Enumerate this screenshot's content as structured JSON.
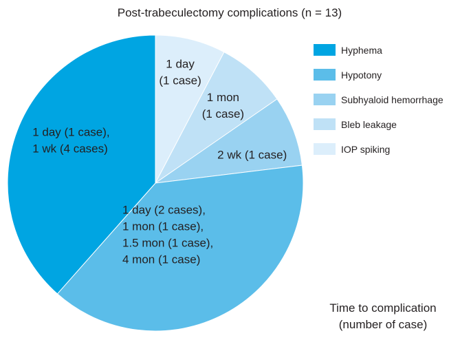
{
  "chart_data": {
    "type": "pie",
    "title": "Post-trabeculectomy complications (n = 13)",
    "start_angle": "12 o'clock, clockwise",
    "slices": [
      {
        "name": "IOP spiking",
        "value": 1,
        "color": "#dceefb",
        "label_lines": [
          "1 day",
          "(1 case)"
        ]
      },
      {
        "name": "Bleb leakage",
        "value": 1,
        "color": "#bfe1f6",
        "label_lines": [
          "1 mon",
          "(1 case)"
        ]
      },
      {
        "name": "Subhyaloid hemorrhage",
        "value": 1,
        "color": "#99d2f1",
        "label_lines": [
          "2 wk (1 case)"
        ]
      },
      {
        "name": "Hypotony",
        "value": 5,
        "color": "#5bbde9",
        "label_lines": [
          "1 day (2 cases),",
          "1 mon (1 case),",
          "1.5 mon (1 case),",
          "4 mon (1 case)"
        ]
      },
      {
        "name": "Hyphema",
        "value": 5,
        "color": "#00a5e2",
        "label_lines": [
          "1 day (1 case),",
          "1 wk (4 cases)"
        ]
      }
    ],
    "legend": {
      "position": "top-right",
      "order": [
        "Hyphema",
        "Hypotony",
        "Subhyaloid hemorrhage",
        "Bleb leakage",
        "IOP spiking"
      ]
    },
    "footnote_lines": [
      "Time to complication",
      "(number of case)"
    ]
  }
}
